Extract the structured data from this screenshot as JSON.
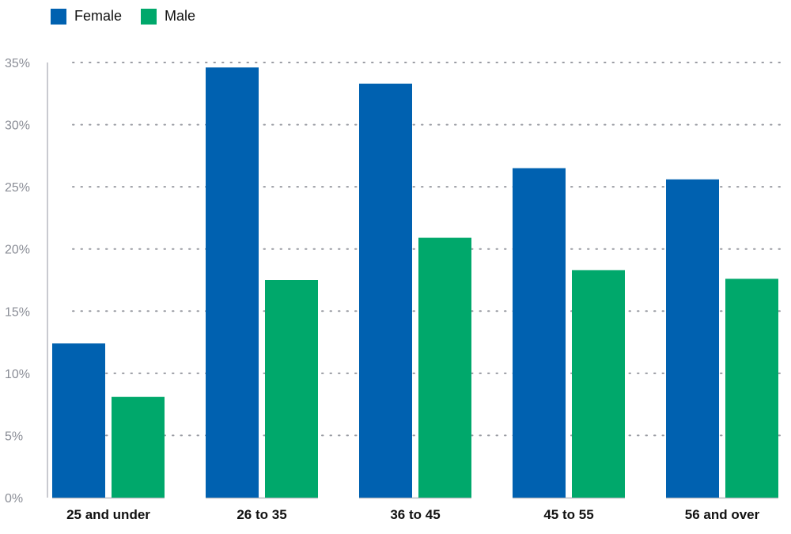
{
  "chart_data": {
    "type": "bar",
    "title": "",
    "xlabel": "",
    "ylabel": "",
    "categories": [
      "25 and under",
      "26 to 35",
      "36 to 45",
      "45 to 55",
      "56 and over"
    ],
    "series": [
      {
        "name": "Female",
        "color": "#0061b0",
        "values": [
          12.4,
          34.6,
          33.3,
          26.5,
          25.6
        ]
      },
      {
        "name": "Male",
        "color": "#00a86b",
        "values": [
          8.1,
          17.5,
          20.9,
          18.3,
          17.6
        ]
      }
    ],
    "ylim": [
      0,
      35
    ],
    "yticks": [
      0,
      5,
      10,
      15,
      20,
      25,
      30,
      35
    ],
    "ytick_labels": [
      "0%",
      "5%",
      "10%",
      "15%",
      "20%",
      "25%",
      "30%",
      "35%"
    ],
    "grid": true,
    "legend_position": "top-left"
  }
}
